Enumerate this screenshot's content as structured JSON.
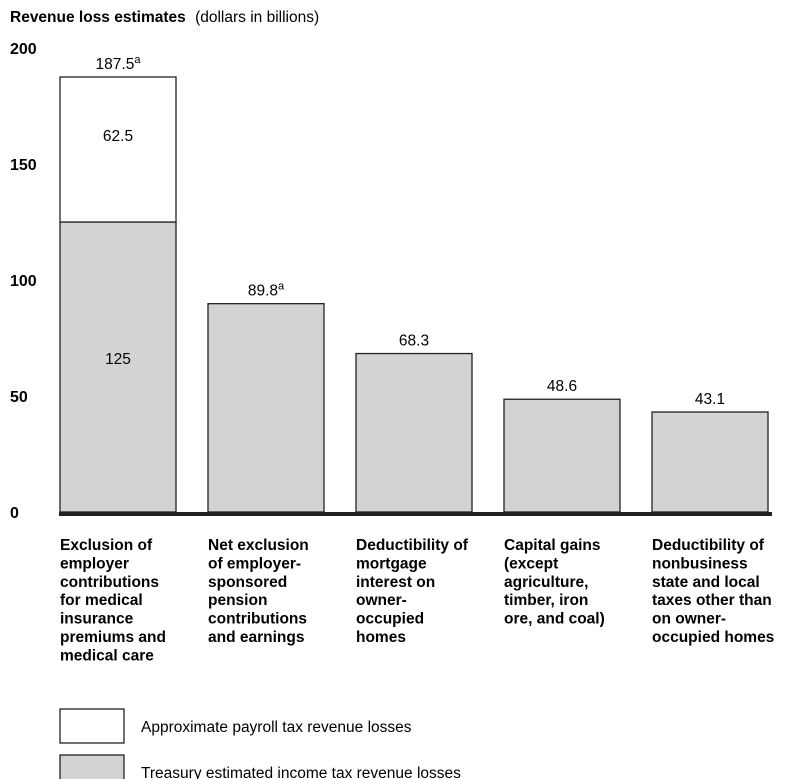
{
  "chart_data": {
    "type": "bar",
    "stacked": true,
    "title": "Revenue loss estimates",
    "title_suffix": "(dollars in billions)",
    "ylim": [
      0,
      200
    ],
    "yticks": [
      0,
      50,
      100,
      150,
      200
    ],
    "grid": false,
    "legend_position": "bottom-left",
    "categories": [
      [
        "Exclusion of",
        "employer",
        "contributions",
        "for medical",
        "insurance",
        "premiums and",
        "medical care"
      ],
      [
        "Net exclusion",
        "of employer-",
        "sponsored",
        "pension",
        "contributions",
        "and earnings"
      ],
      [
        "Deductibility of",
        "mortgage",
        "interest on",
        "owner-",
        "occupied",
        "homes"
      ],
      [
        "Capital gains",
        "(except",
        "agriculture,",
        "timber, iron",
        "ore, and coal)"
      ],
      [
        "Deductibility of",
        "nonbusiness",
        "state and local",
        "taxes other than",
        "on owner-",
        "occupied homes"
      ]
    ],
    "series": [
      {
        "name": "Treasury estimated income tax revenue losses",
        "color": "#d1d3d4",
        "values": [
          125,
          89.8,
          68.3,
          48.6,
          43.1
        ],
        "labels": [
          "125",
          "",
          "",
          "",
          ""
        ]
      },
      {
        "name": "Approximate payroll tax revenue losses",
        "color": "#ffffff",
        "values": [
          62.5,
          0,
          0,
          0,
          0
        ],
        "labels": [
          "62.5",
          "",
          "",
          "",
          ""
        ]
      }
    ],
    "totals": [
      {
        "text": "187.5",
        "sup": "a"
      },
      {
        "text": "89.8",
        "sup": "a"
      },
      {
        "text": "68.3",
        "sup": ""
      },
      {
        "text": "48.6",
        "sup": ""
      },
      {
        "text": "43.1",
        "sup": ""
      }
    ],
    "legend_order": [
      1,
      0
    ]
  }
}
